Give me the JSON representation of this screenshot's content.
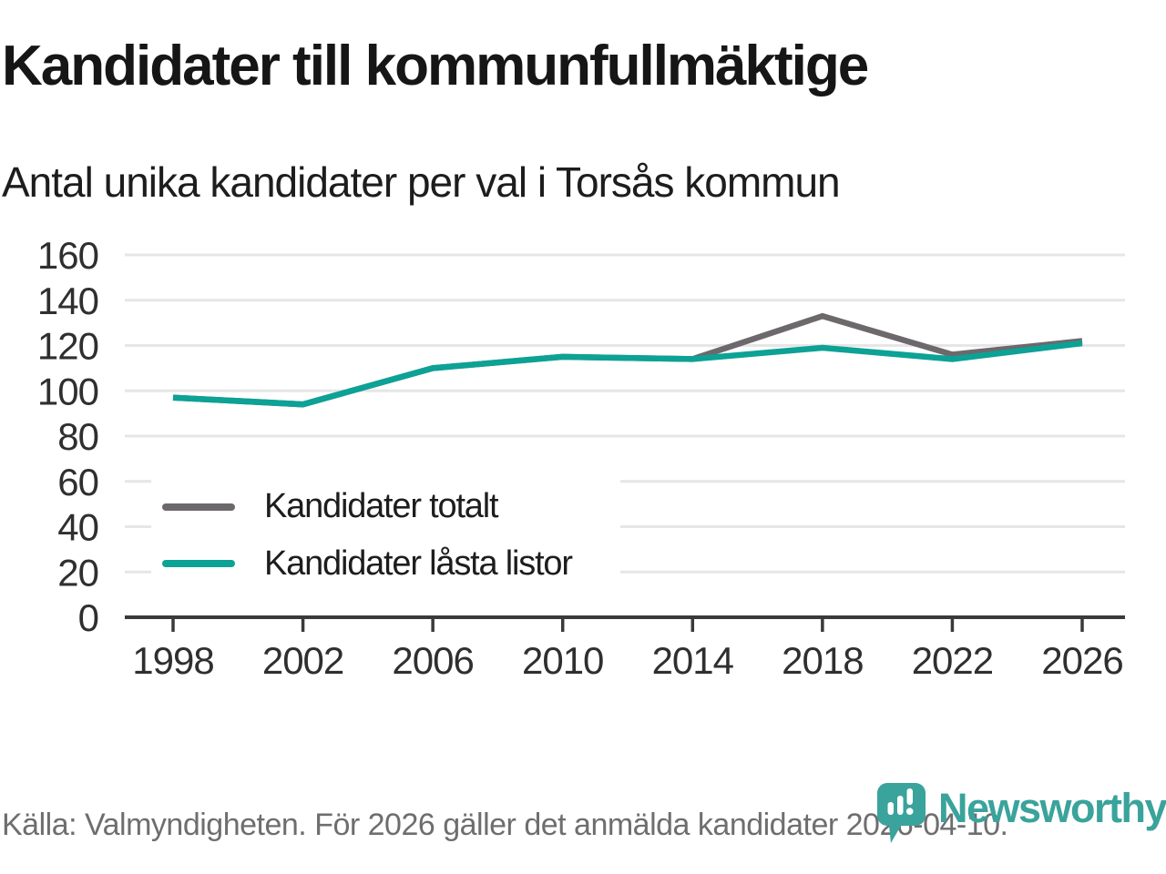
{
  "chart_data": {
    "type": "line",
    "title": "Kandidater till kommunfullmäktige",
    "subtitle": "Antal unika kandidater per val i Torsås kommun",
    "source": "Källa: Valmyndigheten. För 2026 gäller det anmälda kandidater 2026-04-10.",
    "x": [
      1998,
      2002,
      2006,
      2010,
      2014,
      2018,
      2022,
      2026
    ],
    "series": [
      {
        "name": "Kandidater totalt",
        "color": "#6d686c",
        "values": [
          97,
          94,
          110,
          115,
          114,
          133,
          116,
          122
        ]
      },
      {
        "name": "Kandidater låsta listor",
        "color": "#0ca295",
        "values": [
          97,
          94,
          110,
          115,
          114,
          119,
          114,
          121
        ]
      }
    ],
    "xlabel": "",
    "ylabel": "",
    "ylim": [
      0,
      160
    ],
    "ytick_step": 20,
    "grid": true,
    "legend_position": "inside bottom-left"
  },
  "footer": {
    "logo_text": "Newsworthy",
    "logo_color": "#3aa39b"
  }
}
